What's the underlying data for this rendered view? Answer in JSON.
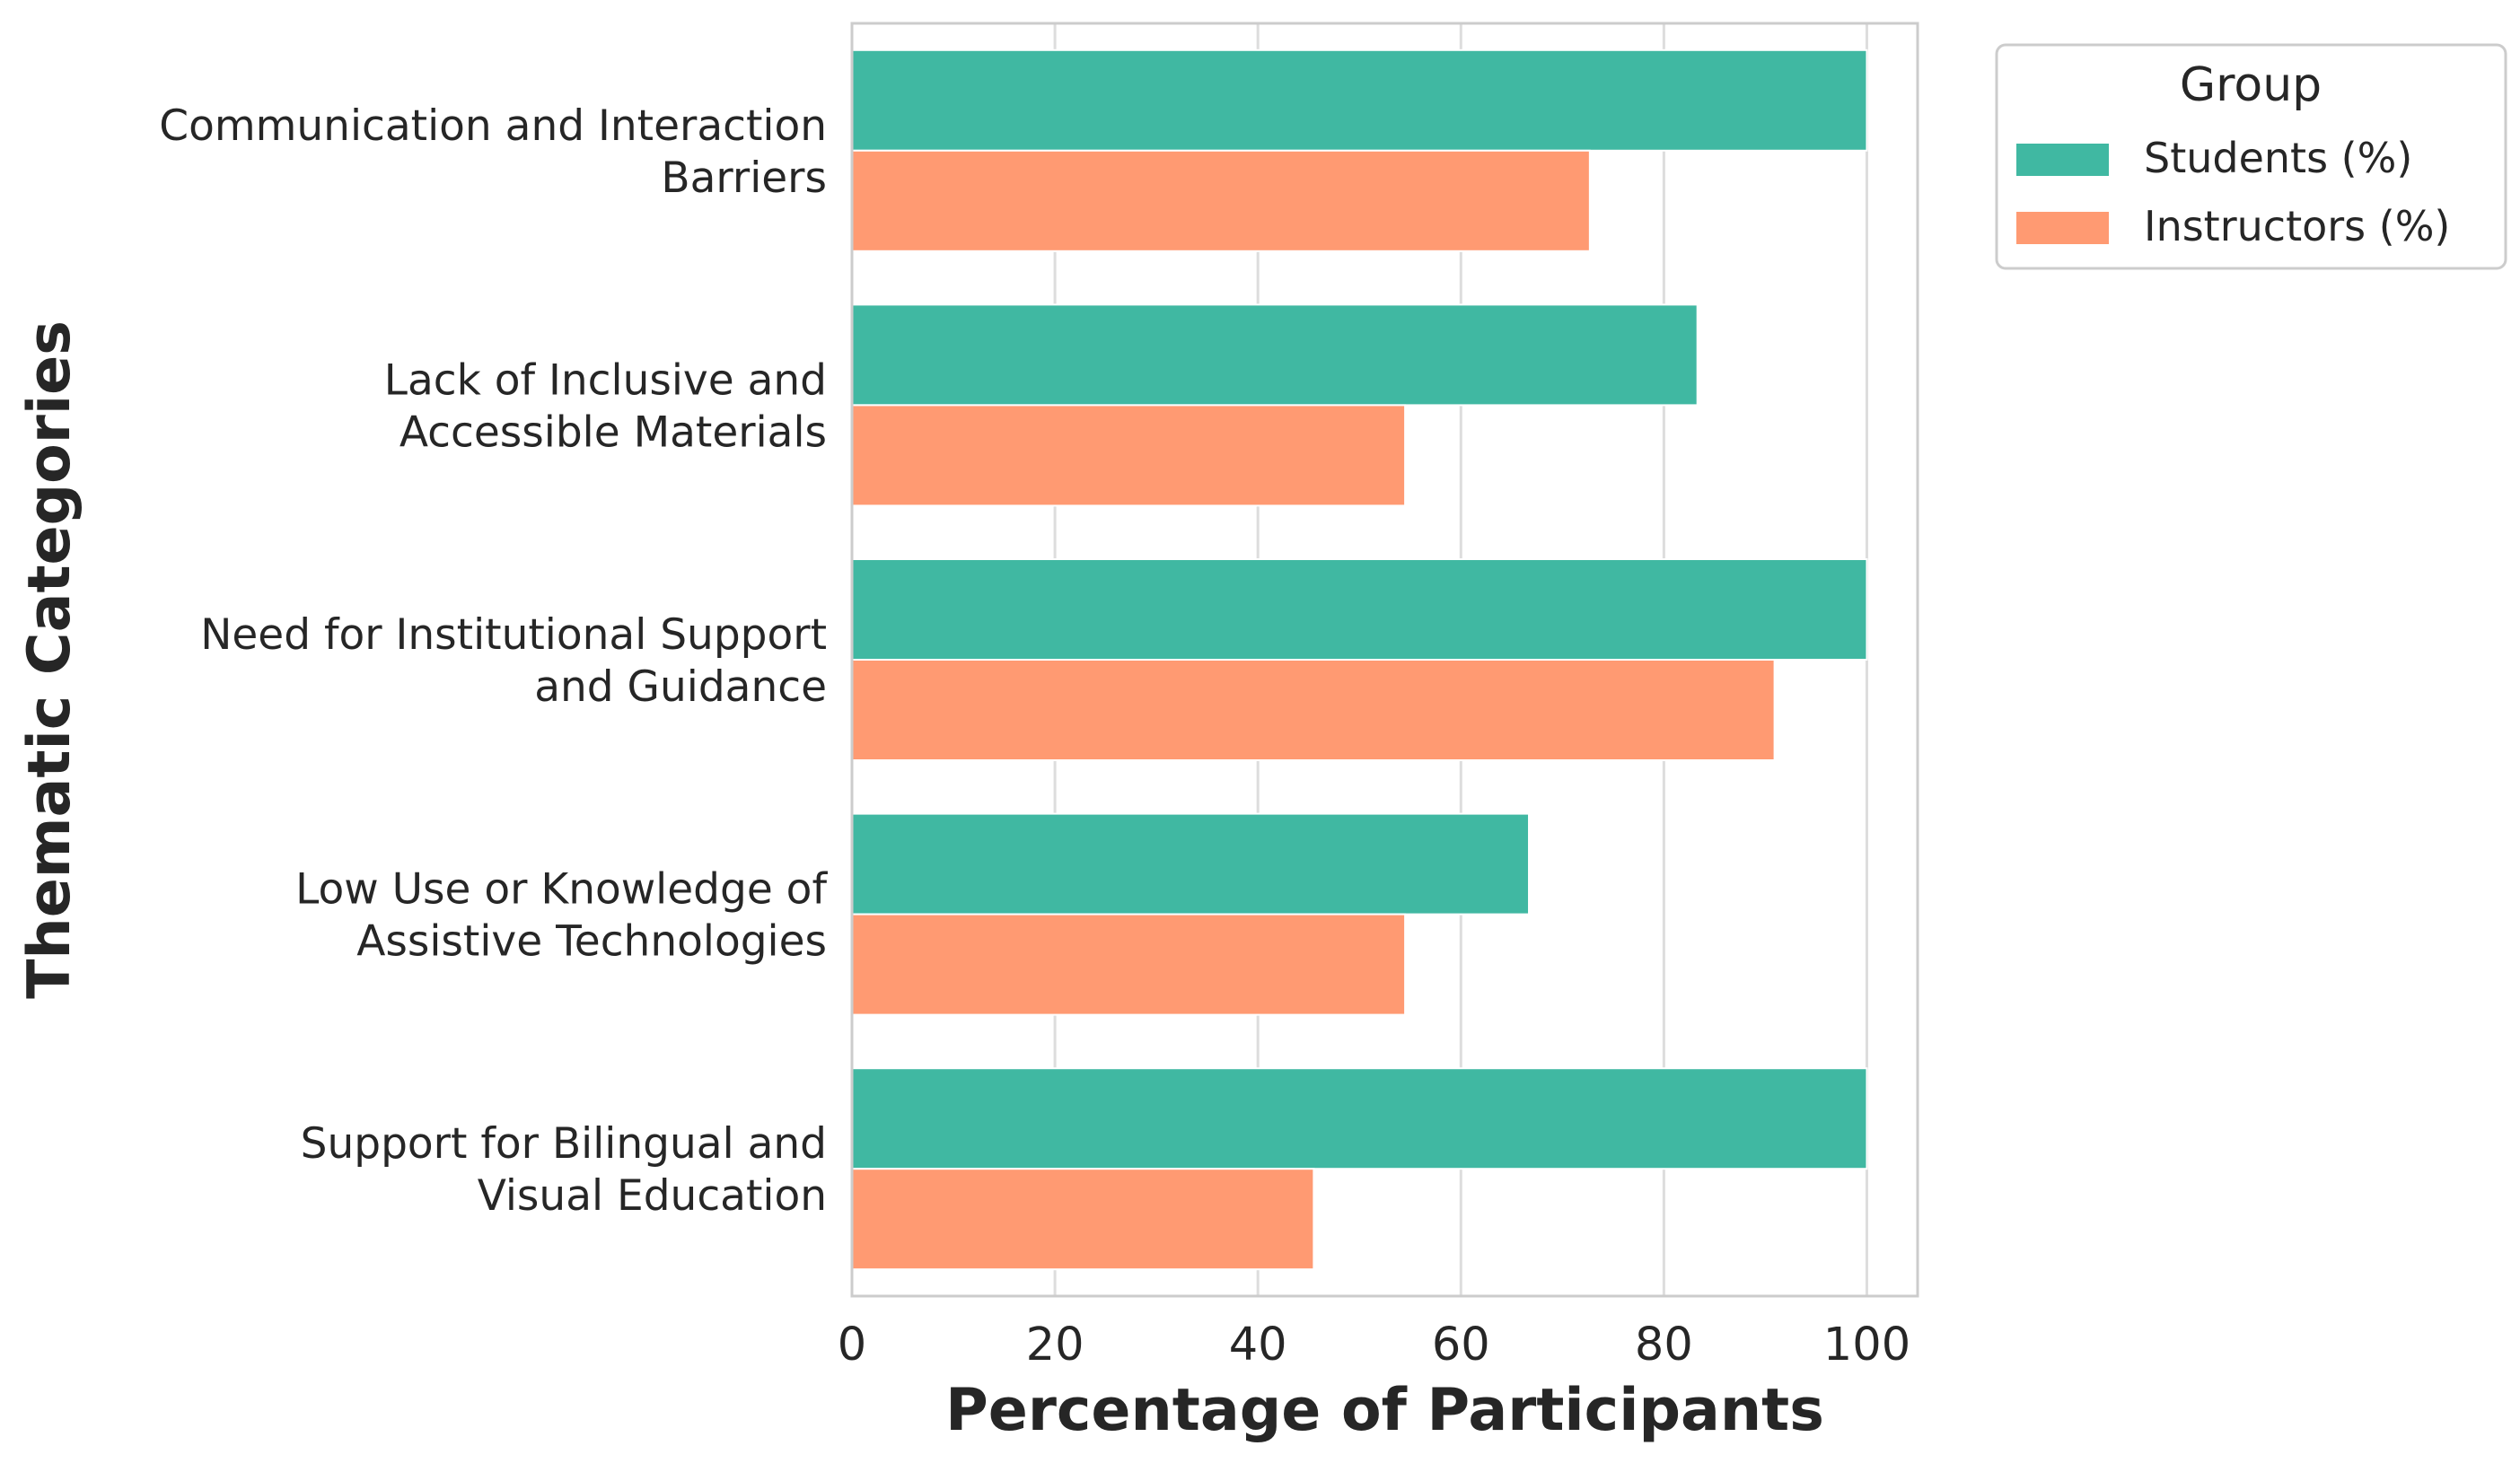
{
  "chart_data": {
    "type": "bar",
    "orientation": "horizontal",
    "categories": [
      [
        "Communication and Interaction",
        "Barriers"
      ],
      [
        "Lack of Inclusive and",
        "Accessible Materials"
      ],
      [
        "Need for Institutional Support",
        "and Guidance"
      ],
      [
        "Low Use or Knowledge of",
        "Assistive Technologies"
      ],
      [
        "Support for Bilingual and",
        "Visual Education"
      ]
    ],
    "series": [
      {
        "name": "Students (%)",
        "color": "#40b8a2",
        "values": [
          100,
          83.3,
          100,
          66.7,
          100
        ]
      },
      {
        "name": "Instructors (%)",
        "color": "#ff9a72",
        "values": [
          72.7,
          54.5,
          90.9,
          54.5,
          45.5
        ]
      }
    ],
    "xlabel": "Percentage of Participants",
    "ylabel": "Thematic Categories",
    "xlim": [
      0,
      105
    ],
    "xticks": [
      0,
      20,
      40,
      60,
      80,
      100
    ],
    "grid": true,
    "legend": {
      "title": "Group",
      "placement": "outside top-right"
    }
  }
}
